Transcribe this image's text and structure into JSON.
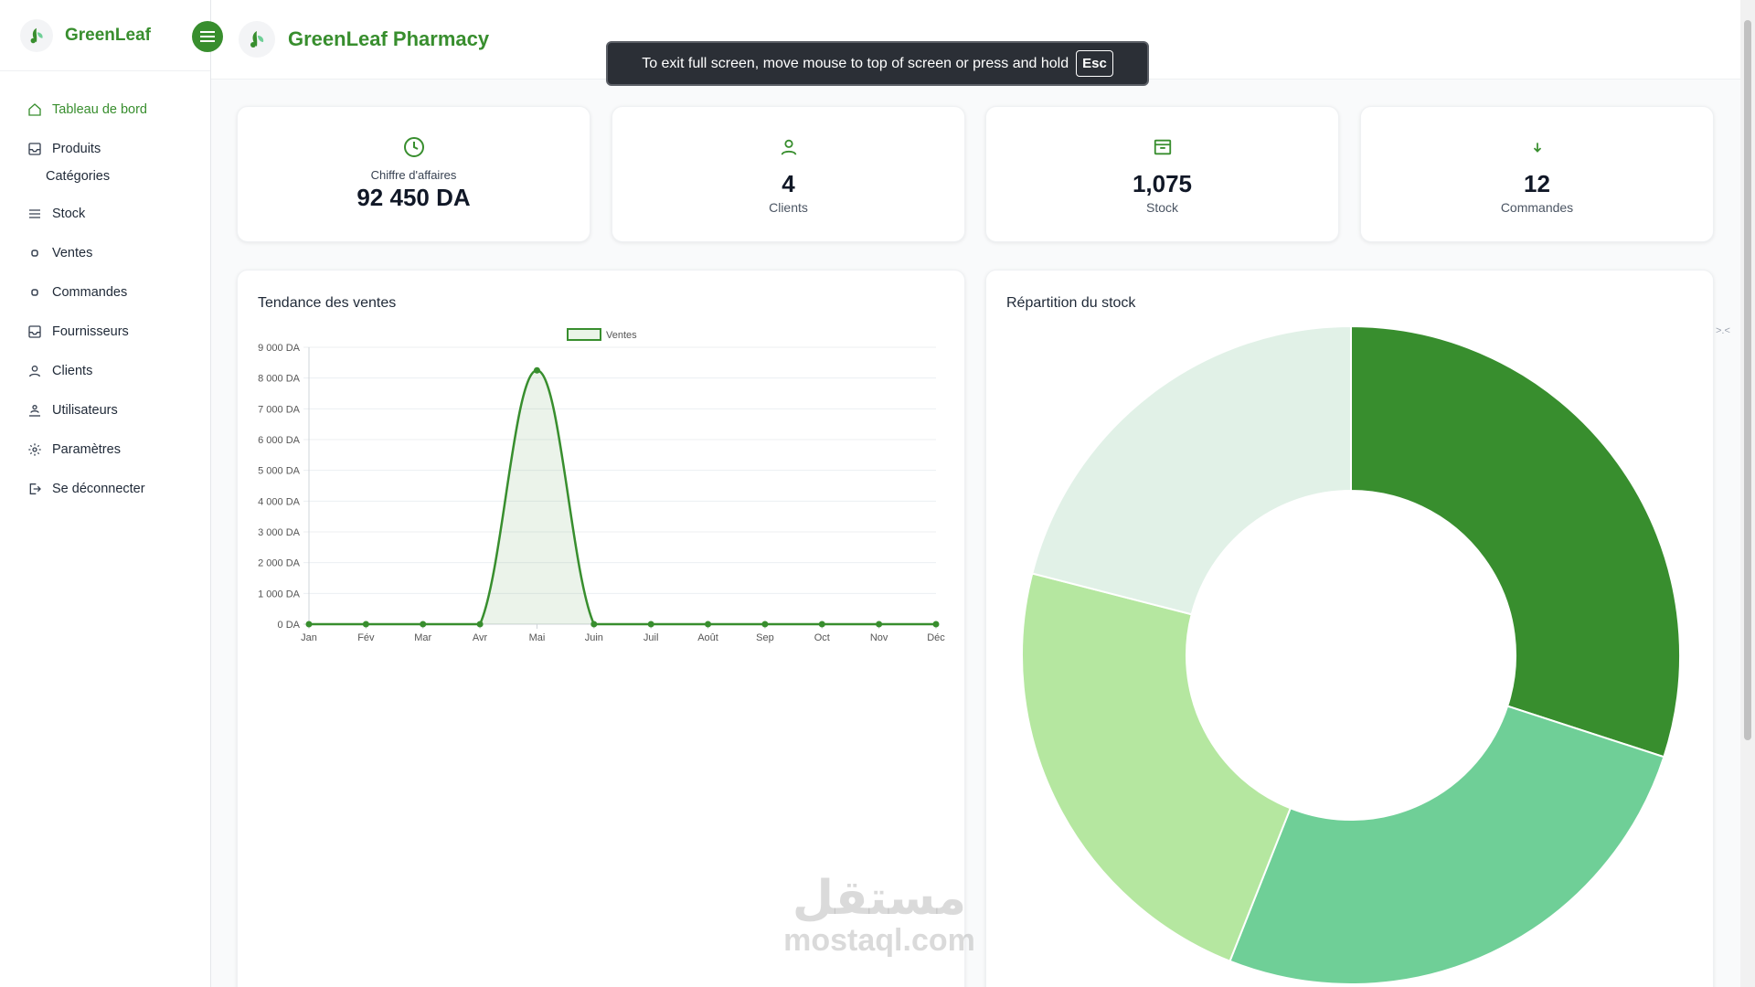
{
  "sidebar": {
    "brand": "GreenLeaf",
    "items": [
      {
        "label": "Tableau de bord",
        "icon": "home-icon",
        "active": true
      },
      {
        "label": "Produits",
        "icon": "inbox-icon"
      },
      {
        "label": "Catégories",
        "sub": true
      },
      {
        "label": "Stock",
        "icon": "list-icon"
      },
      {
        "label": "Ventes",
        "icon": "dot-icon"
      },
      {
        "label": "Commandes",
        "icon": "dot-icon"
      },
      {
        "label": "Fournisseurs",
        "icon": "inbox-icon"
      },
      {
        "label": "Clients",
        "icon": "user-icon"
      },
      {
        "label": "Utilisateurs",
        "icon": "users-icon"
      },
      {
        "label": "Paramètres",
        "icon": "gear-icon"
      },
      {
        "label": "Se déconnecter",
        "icon": "logout-icon"
      }
    ]
  },
  "header": {
    "title": "GreenLeaf Pharmacy"
  },
  "toast": {
    "text": "To exit full screen, move mouse to top of screen or press and hold",
    "key": "Esc"
  },
  "stats": [
    {
      "icon": "clock-icon",
      "label": "Chiffre d'affaires",
      "value": "92 450 DA"
    },
    {
      "icon": "user-icon",
      "label": "Clients",
      "value": "4"
    },
    {
      "icon": "archive-icon",
      "label": "Stock",
      "value": "1,075"
    },
    {
      "icon": "arrow-down-icon",
      "label": "Commandes",
      "value": "12"
    }
  ],
  "colors": {
    "accent": "#388e2e",
    "donut": [
      "#388e2e",
      "#6fcf97",
      "#b5e7a0",
      "#e1f1e7"
    ]
  },
  "sales_panel": {
    "title": "Tendance des ventes"
  },
  "stock_panel": {
    "title": "Répartition du stock"
  },
  "watermark": {
    "arabic": "مستقل",
    "latin": "mostaql.com"
  },
  "chart_data": [
    {
      "type": "line",
      "legend": "Ventes",
      "legend_position": "top",
      "categories": [
        "Jan",
        "Fév",
        "Mar",
        "Avr",
        "Mai",
        "Juin",
        "Juil",
        "Août",
        "Sep",
        "Oct",
        "Nov",
        "Déc"
      ],
      "series": [
        {
          "name": "Ventes",
          "values": [
            0,
            0,
            0,
            0,
            8250,
            0,
            0,
            0,
            0,
            0,
            0,
            0
          ]
        }
      ],
      "ylim": [
        0,
        9000
      ],
      "yticks": [
        "0 DA",
        "1 000 DA",
        "2 000 DA",
        "3 000 DA",
        "4 000 DA",
        "5 000 DA",
        "6 000 DA",
        "7 000 DA",
        "8 000 DA",
        "9 000 DA"
      ],
      "grid": true,
      "fill": true
    },
    {
      "type": "pie",
      "donut": true,
      "values": [
        30,
        26,
        23,
        21
      ]
    }
  ]
}
